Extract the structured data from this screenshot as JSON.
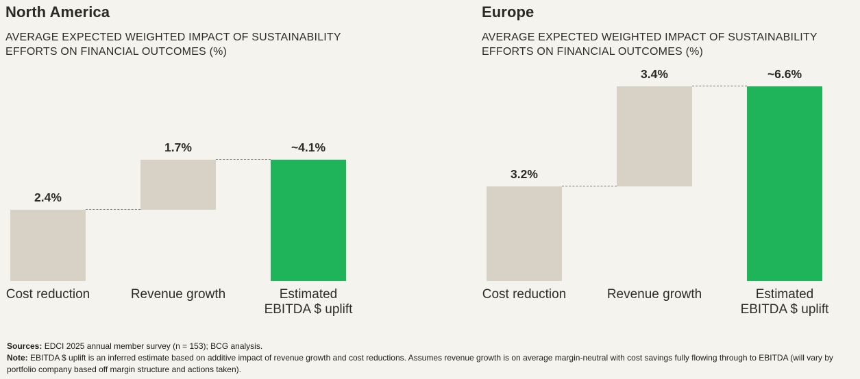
{
  "colors": {
    "background": "#f5f3ed",
    "bar_neutral": "#d8d1c5",
    "bar_accent": "#1fb45a",
    "text": "#2a2a26",
    "connector": "#74726b"
  },
  "chart_data": [
    {
      "type": "bar",
      "subtype": "waterfall",
      "title": "North America",
      "subtitle": "AVERAGE EXPECTED WEIGHTED IMPACT OF SUSTAINABILITY EFFORTS ON FINANCIAL OUTCOMES (%)",
      "unit": "%",
      "ylim": [
        0,
        7
      ],
      "grid": false,
      "legend": false,
      "categories": [
        "Cost reduction",
        "Revenue growth",
        "Estimated\nEBITDA $ uplift"
      ],
      "bars": [
        {
          "category": "Cost reduction",
          "value": 2.4,
          "start": 0,
          "end": 2.4,
          "display": "2.4%",
          "accent": false
        },
        {
          "category": "Revenue growth",
          "value": 1.7,
          "start": 2.4,
          "end": 4.1,
          "display": "1.7%",
          "accent": false
        },
        {
          "category": "Estimated\nEBITDA $ uplift",
          "value": 4.1,
          "start": 0,
          "end": 4.1,
          "display": "~4.1%",
          "accent": true
        }
      ]
    },
    {
      "type": "bar",
      "subtype": "waterfall",
      "title": "Europe",
      "subtitle": "AVERAGE EXPECTED WEIGHTED IMPACT OF SUSTAINABILITY EFFORTS ON FINANCIAL OUTCOMES (%)",
      "unit": "%",
      "ylim": [
        0,
        7
      ],
      "grid": false,
      "legend": false,
      "categories": [
        "Cost reduction",
        "Revenue growth",
        "Estimated\nEBITDA $ uplift"
      ],
      "bars": [
        {
          "category": "Cost reduction",
          "value": 3.2,
          "start": 0,
          "end": 3.2,
          "display": "3.2%",
          "accent": false
        },
        {
          "category": "Revenue growth",
          "value": 3.4,
          "start": 3.2,
          "end": 6.6,
          "display": "3.4%",
          "accent": false
        },
        {
          "category": "Estimated\nEBITDA $ uplift",
          "value": 6.6,
          "start": 0,
          "end": 6.6,
          "display": "~6.6%",
          "accent": true
        }
      ]
    }
  ],
  "footer": {
    "sources_label": "Sources:",
    "sources_text": "EDCI 2025 annual member survey (n = 153); BCG analysis.",
    "note_label": "Note:",
    "note_text": "EBITDA $ uplift is an inferred estimate based on additive impact of revenue growth and cost reductions. Assumes revenue growth is on average margin-neutral with cost savings fully flowing through to EBITDA (will vary by portfolio company based off margin structure and actions taken)."
  }
}
